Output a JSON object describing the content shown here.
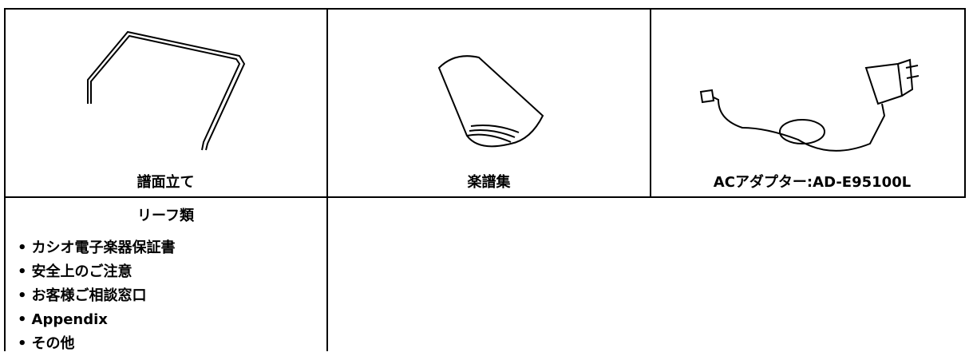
{
  "table": {
    "rows": [
      {
        "cells": [
          {
            "caption": "譜面立て"
          },
          {
            "caption": "楽譜集"
          },
          {
            "caption": "ACアダプター:AD-E95100L"
          }
        ]
      },
      {
        "cells": [
          {
            "title": "リーフ類",
            "items": [
              "カシオ電子楽器保証書",
              "安全上のご注意",
              "お客様ご相談窓口",
              "Appendix",
              "その他"
            ]
          }
        ]
      }
    ]
  }
}
